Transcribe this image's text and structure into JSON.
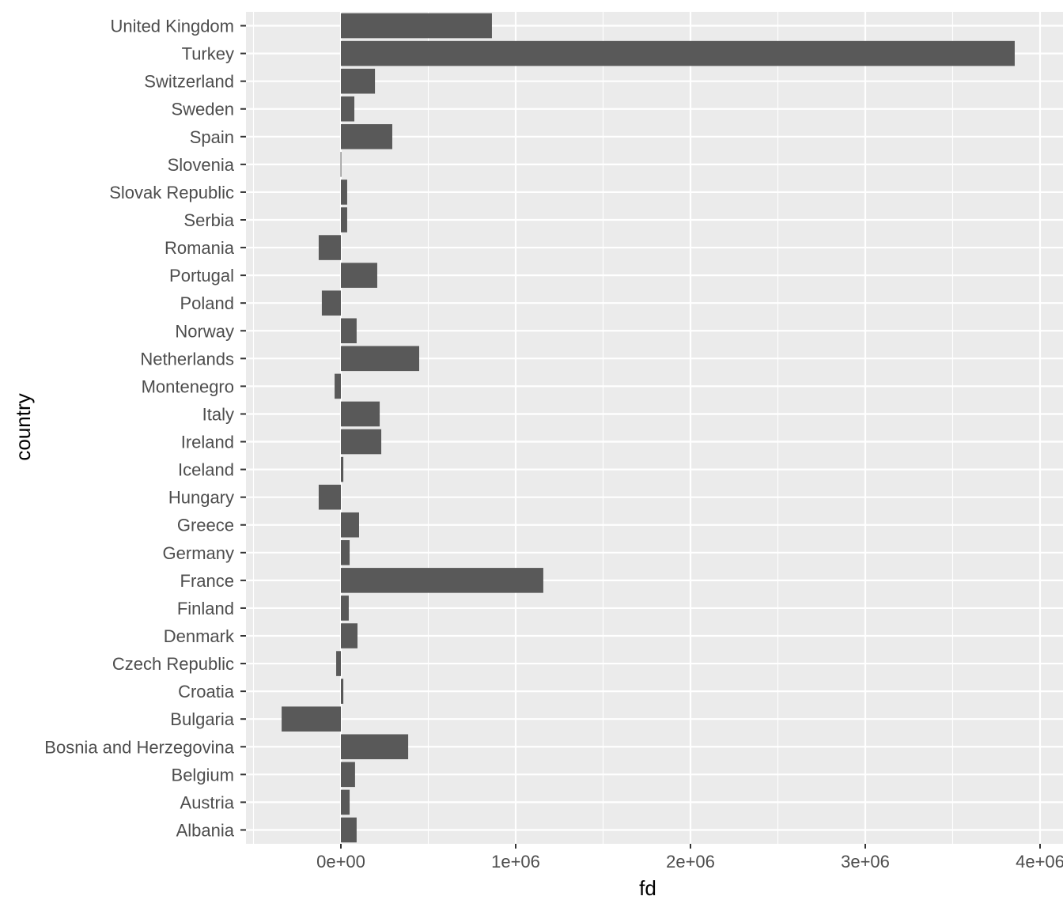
{
  "chart_data": {
    "type": "bar",
    "orientation": "horizontal",
    "title": "",
    "xlabel": "fd",
    "ylabel": "country",
    "xlim": [
      -543000,
      4150000
    ],
    "x_ticks": [
      0,
      1000000,
      2000000,
      3000000,
      4000000
    ],
    "x_tick_labels": [
      "0e+00",
      "1e+06",
      "2e+06",
      "3e+06",
      "4e+06"
    ],
    "grid": true,
    "colors": {
      "bar": "#595959",
      "panel": "#ebebeb",
      "grid": "#ffffff",
      "tick_text": "#4d4d4d",
      "title_text": "#000000"
    },
    "categories": [
      "United Kingdom",
      "Turkey",
      "Switzerland",
      "Sweden",
      "Spain",
      "Slovenia",
      "Slovak Republic",
      "Serbia",
      "Romania",
      "Portugal",
      "Poland",
      "Norway",
      "Netherlands",
      "Montenegro",
      "Italy",
      "Ireland",
      "Iceland",
      "Hungary",
      "Greece",
      "Germany",
      "France",
      "Finland",
      "Denmark",
      "Czech Republic",
      "Croatia",
      "Bulgaria",
      "Bosnia and Herzegovina",
      "Belgium",
      "Austria",
      "Albania"
    ],
    "values": [
      864000,
      3855000,
      195000,
      77000,
      294000,
      -2000,
      36000,
      36000,
      -127000,
      208000,
      -109000,
      90000,
      448000,
      -36000,
      222000,
      231000,
      14000,
      -127000,
      104000,
      50000,
      1158000,
      45000,
      95000,
      -27000,
      14000,
      -339000,
      385000,
      81000,
      50000,
      90000
    ]
  }
}
